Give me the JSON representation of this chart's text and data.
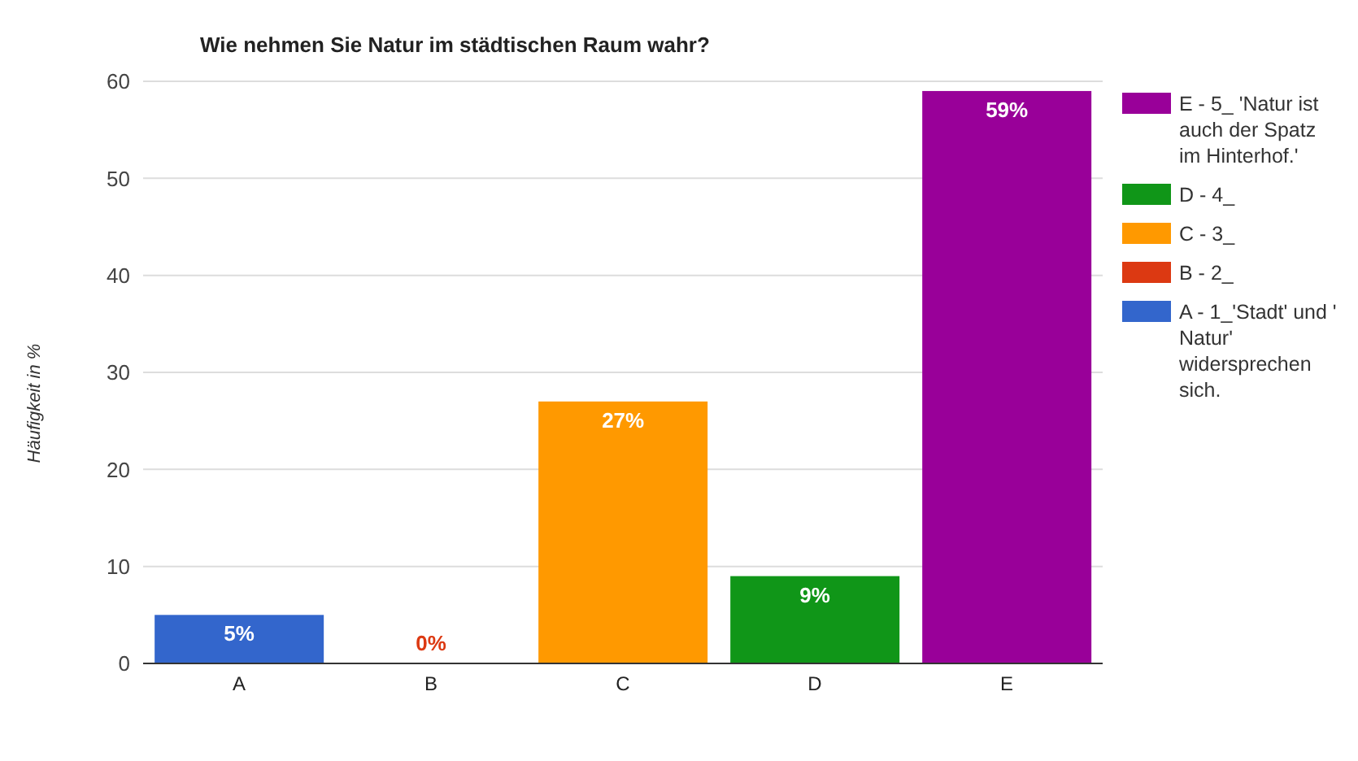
{
  "chart_data": {
    "type": "bar",
    "title": "Wie nehmen Sie Natur im städtischen Raum wahr?",
    "ylabel": "Häufigkeit in %",
    "categories": [
      "A",
      "B",
      "C",
      "D",
      "E"
    ],
    "stacked": true,
    "series": [
      {
        "name": "E - 5_ 'Natur ist auch der Spatz im Hinterhof.'",
        "color": "#990099",
        "values": [
          null,
          null,
          null,
          null,
          59
        ],
        "value_labels": [
          null,
          null,
          null,
          null,
          "59%"
        ]
      },
      {
        "name": "D - 4_",
        "color": "#109618",
        "values": [
          null,
          null,
          null,
          9,
          null
        ],
        "value_labels": [
          null,
          null,
          null,
          "9%",
          null
        ]
      },
      {
        "name": "C - 3_",
        "color": "#ff9900",
        "values": [
          null,
          null,
          27,
          null,
          null
        ],
        "value_labels": [
          null,
          null,
          "27%",
          null,
          null
        ]
      },
      {
        "name": "B - 2_",
        "color": "#dc3912",
        "values": [
          null,
          0,
          null,
          null,
          null
        ],
        "value_labels": [
          null,
          "0%",
          null,
          null,
          null
        ]
      },
      {
        "name": "A - 1_'Stadt' und ' Natur' widersprechen sich.",
        "color": "#3366cc",
        "values": [
          5,
          null,
          null,
          null,
          null
        ],
        "value_labels": [
          "5%",
          null,
          null,
          null,
          null
        ]
      }
    ],
    "ylim": [
      0,
      60
    ],
    "yticks": [
      0,
      10,
      20,
      30,
      40,
      50,
      60
    ],
    "grid": "y",
    "legend": "top right"
  }
}
